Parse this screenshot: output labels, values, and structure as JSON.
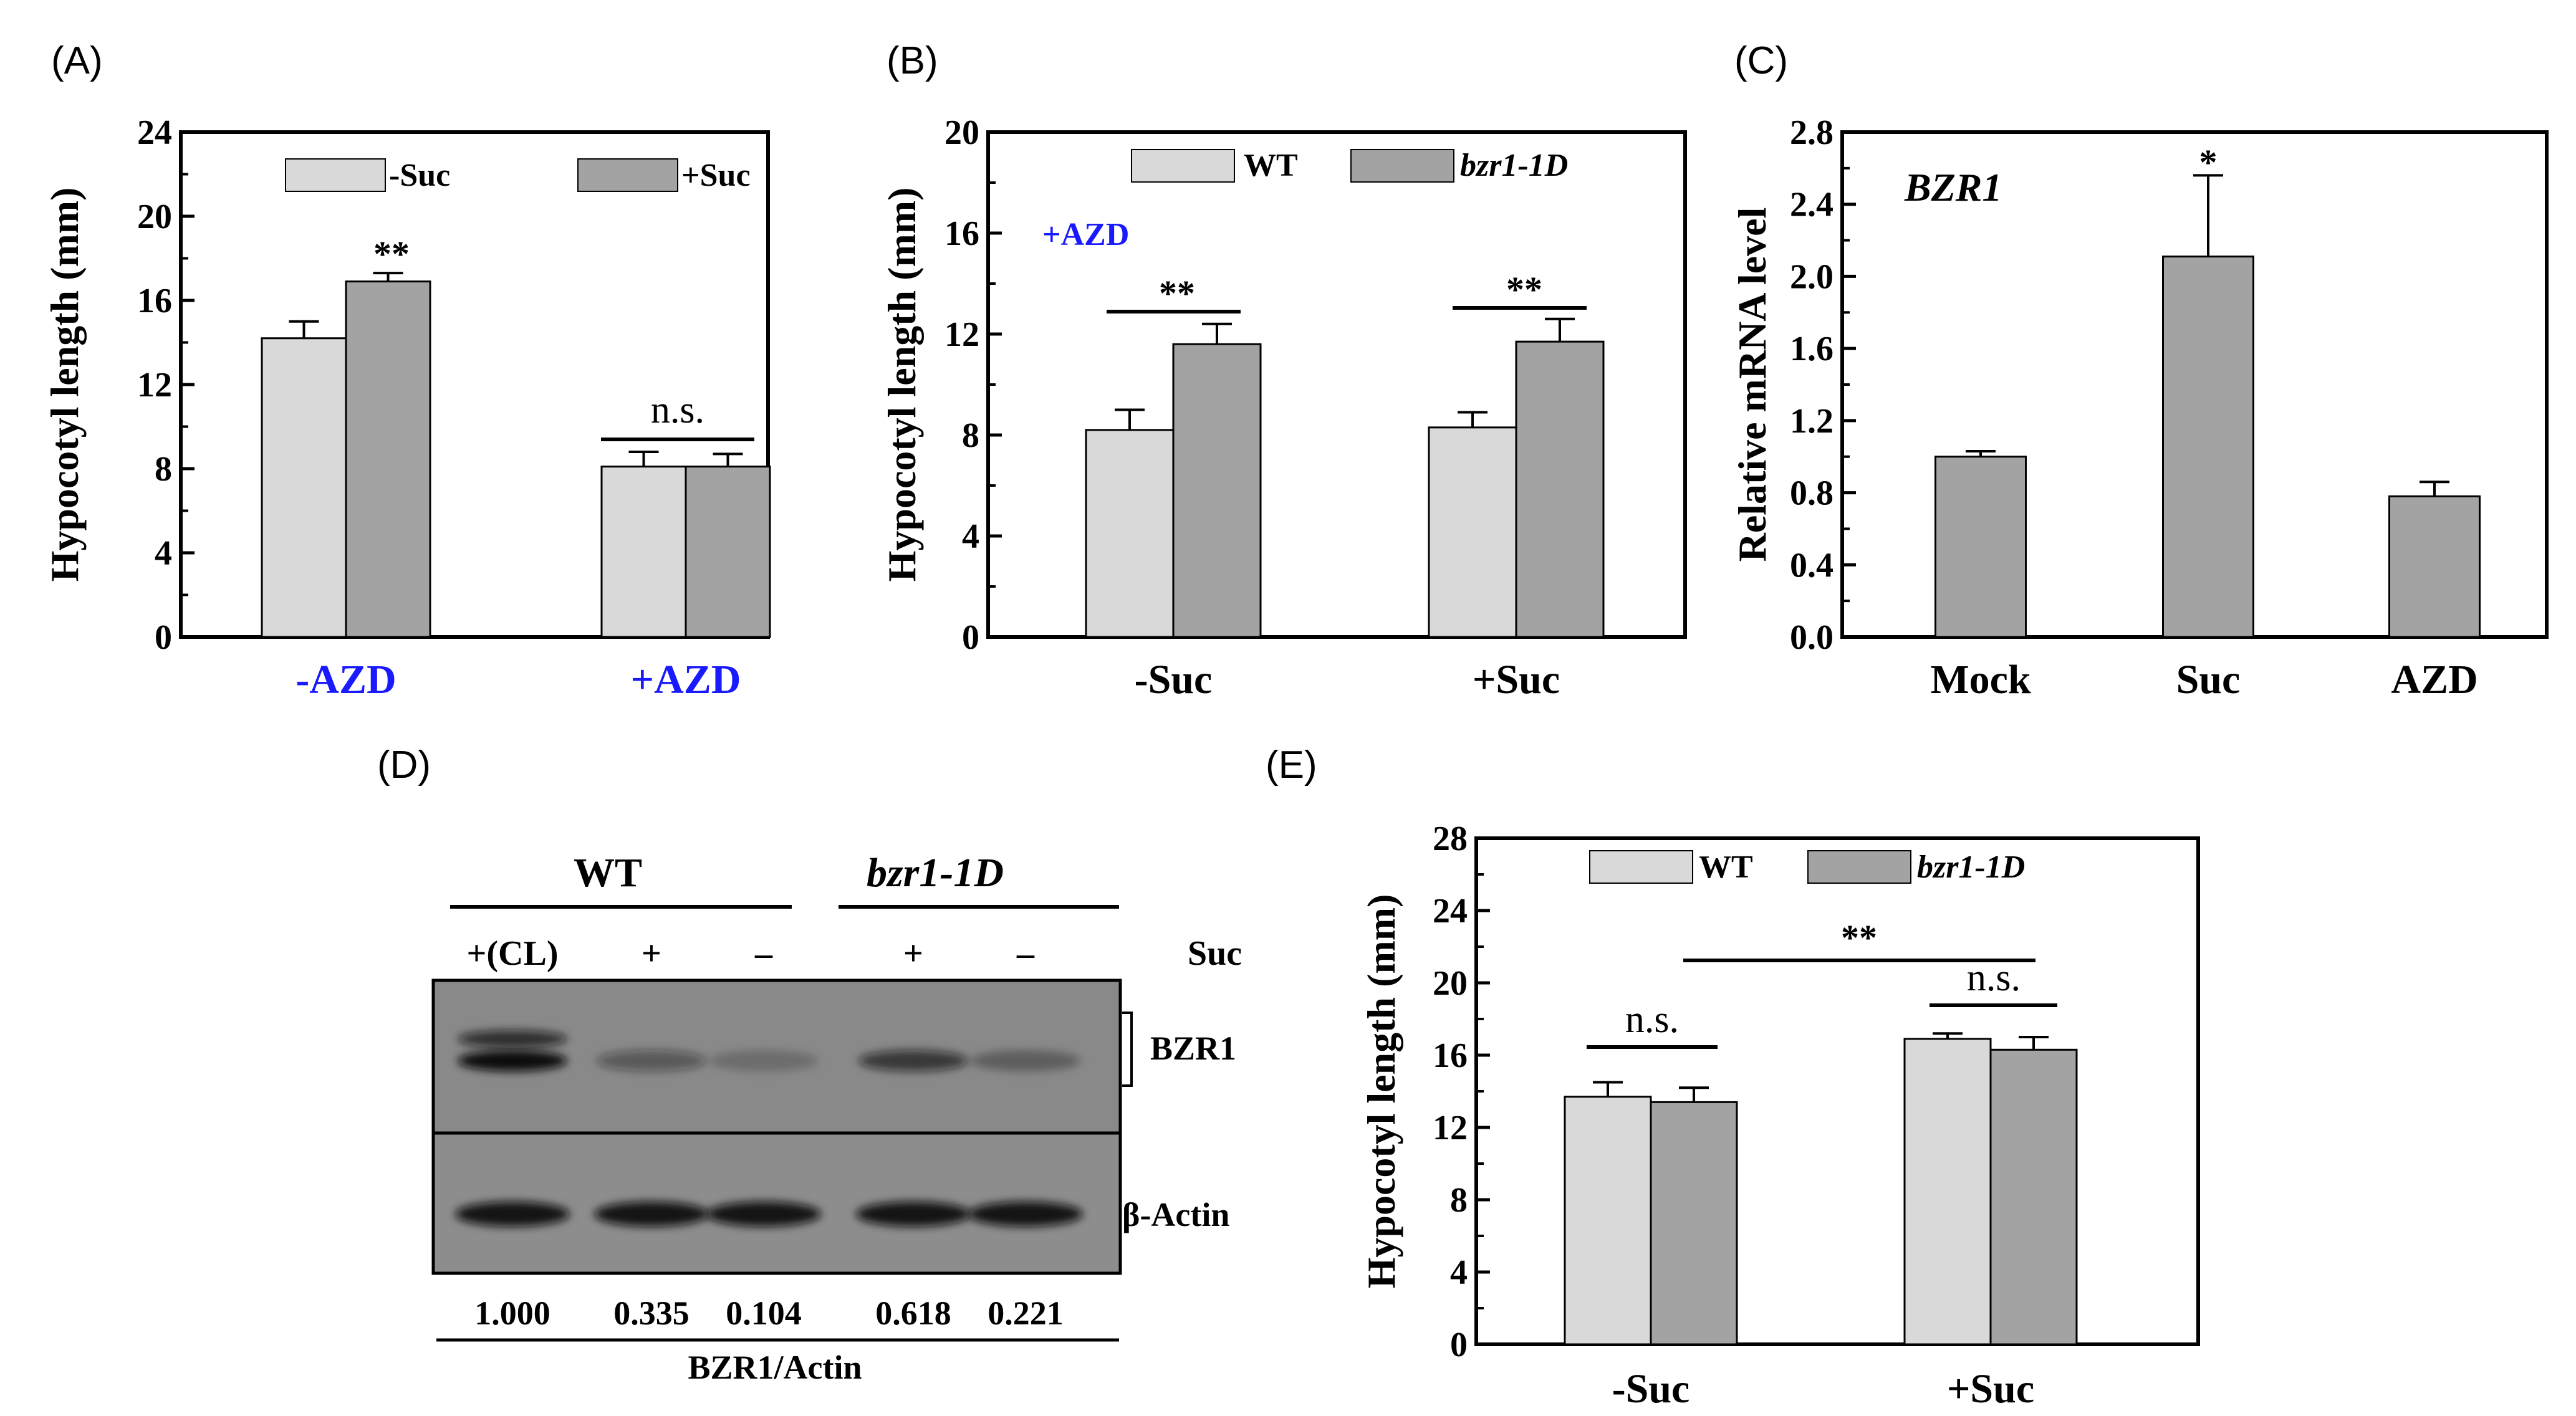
{
  "colors": {
    "light": "#d9d9d9",
    "dark": "#a3a3a3",
    "accent_text": "#1a1aff",
    "blot_bg": "#8a8a8a",
    "band": "#111111"
  },
  "panel_labels": [
    "(A)",
    "(B)",
    "(C)",
    "(D)",
    "(E)"
  ],
  "chart_data": [
    {
      "id": "A",
      "type": "bar",
      "ylabel": "Hypocotyl length (mm)",
      "ylim": [
        0,
        24
      ],
      "yticks": [
        "0",
        "4",
        "8",
        "12",
        "16",
        "20",
        "24"
      ],
      "categories": [
        "-AZD",
        "+AZD"
      ],
      "series": [
        {
          "name": "-Suc",
          "values": [
            14.2,
            8.1
          ],
          "errors": [
            0.8,
            0.7
          ]
        },
        {
          "name": "+Suc",
          "values": [
            16.9,
            8.1
          ],
          "errors": [
            0.4,
            0.6
          ]
        }
      ],
      "annotations": [
        "**",
        "n.s."
      ]
    },
    {
      "id": "B",
      "type": "bar",
      "ylabel": "Hypocotyl length (mm)",
      "ylim": [
        0,
        20
      ],
      "yticks": [
        "0",
        "4",
        "8",
        "12",
        "16",
        "20"
      ],
      "categories": [
        "-Suc",
        "+Suc"
      ],
      "series": [
        {
          "name": "WT",
          "values": [
            8.2,
            8.3
          ],
          "errors": [
            0.8,
            0.6
          ]
        },
        {
          "name": "bzr1-1D",
          "values": [
            11.6,
            11.7
          ],
          "errors": [
            0.8,
            0.9
          ]
        }
      ],
      "condition_label": "+AZD",
      "annotations": [
        "**",
        "**"
      ]
    },
    {
      "id": "C",
      "type": "bar",
      "ylabel": "Relative mRNA level",
      "ylim": [
        0,
        2.8
      ],
      "yticks": [
        "0.0",
        "0.4",
        "0.8",
        "1.2",
        "1.6",
        "2.0",
        "2.4",
        "2.8"
      ],
      "gene_label": "BZR1",
      "categories": [
        "Mock",
        "Suc",
        "AZD"
      ],
      "series": [
        {
          "name": "BZR1",
          "values": [
            1.0,
            2.11,
            0.78
          ],
          "errors": [
            0.03,
            0.45,
            0.08
          ]
        }
      ],
      "annotations": [
        "*"
      ]
    },
    {
      "id": "E",
      "type": "bar",
      "ylabel": "Hypocotyl length (mm)",
      "ylim": [
        0,
        28
      ],
      "yticks": [
        "0",
        "4",
        "8",
        "12",
        "16",
        "20",
        "24",
        "28"
      ],
      "categories": [
        "-Suc",
        "+Suc"
      ],
      "series": [
        {
          "name": "WT",
          "values": [
            13.7,
            16.9
          ],
          "errors": [
            0.8,
            0.3
          ]
        },
        {
          "name": "bzr1-1D",
          "values": [
            13.4,
            16.3
          ],
          "errors": [
            0.8,
            0.7
          ]
        }
      ],
      "annotations": [
        "n.s.",
        "n.s.",
        "**"
      ]
    }
  ],
  "western": {
    "groups": [
      "WT",
      "bzr1-1D"
    ],
    "lane_labels": [
      "+(CL)",
      "+",
      "–",
      "+",
      "–"
    ],
    "suc_label": "Suc",
    "bands": [
      "BZR1",
      "β-Actin"
    ],
    "ratio_values": [
      "1.000",
      "0.335",
      "0.104",
      "0.618",
      "0.221"
    ],
    "ratio_label": "BZR1/Actin"
  }
}
